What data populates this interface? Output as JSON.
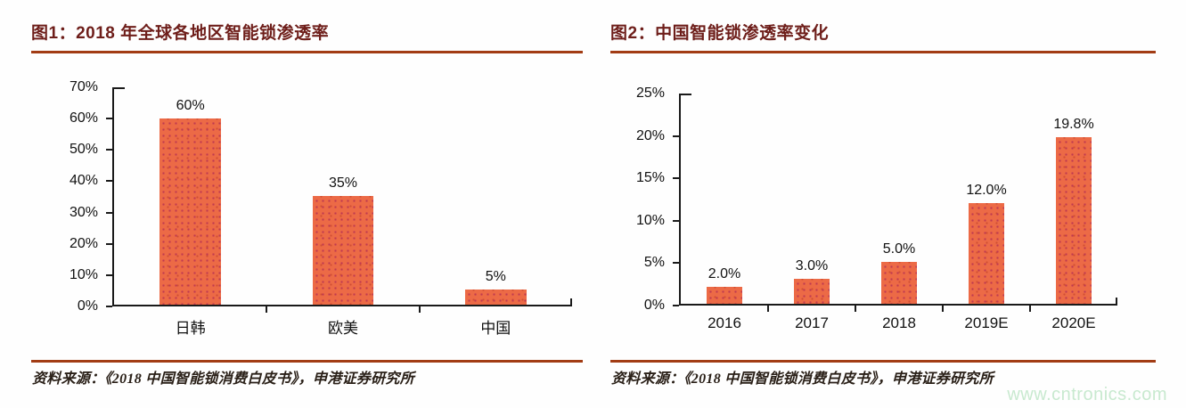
{
  "watermark": "www.cntronics.com",
  "colors": {
    "bar_fill": "#ec6a46",
    "bar_dot": "#bf3a50",
    "title_text": "#6e1e1a",
    "rule": "#a23c14",
    "axis": "#1a1a1a",
    "watermark": "#c8e9cf"
  },
  "chart_data": [
    {
      "type": "bar",
      "title": "图1：2018 年全球各地区智能锁渗透率",
      "categories": [
        "日韩",
        "欧美",
        "中国"
      ],
      "values": [
        60,
        35,
        5
      ],
      "data_labels": [
        "60%",
        "35%",
        "5%"
      ],
      "ylim": [
        0,
        70
      ],
      "ytick_step": 10,
      "ytick_labels": [
        "0%",
        "10%",
        "20%",
        "30%",
        "40%",
        "50%",
        "60%",
        "70%"
      ],
      "xlabel": "",
      "ylabel": "",
      "grid": false,
      "legend": "none",
      "source": "资料来源：《2018 中国智能锁消费白皮书》，申港证券研究所"
    },
    {
      "type": "bar",
      "title": "图2：中国智能锁渗透率变化",
      "categories": [
        "2016",
        "2017",
        "2018",
        "2019E",
        "2020E"
      ],
      "values": [
        2.0,
        3.0,
        5.0,
        12.0,
        19.8
      ],
      "data_labels": [
        "2.0%",
        "3.0%",
        "5.0%",
        "12.0%",
        "19.8%"
      ],
      "ylim": [
        0,
        25
      ],
      "ytick_step": 5,
      "ytick_labels": [
        "0%",
        "5%",
        "10%",
        "15%",
        "20%",
        "25%"
      ],
      "xlabel": "",
      "ylabel": "",
      "grid": false,
      "legend": "none",
      "source": "资料来源：《2018 中国智能锁消费白皮书》，申港证券研究所"
    }
  ]
}
